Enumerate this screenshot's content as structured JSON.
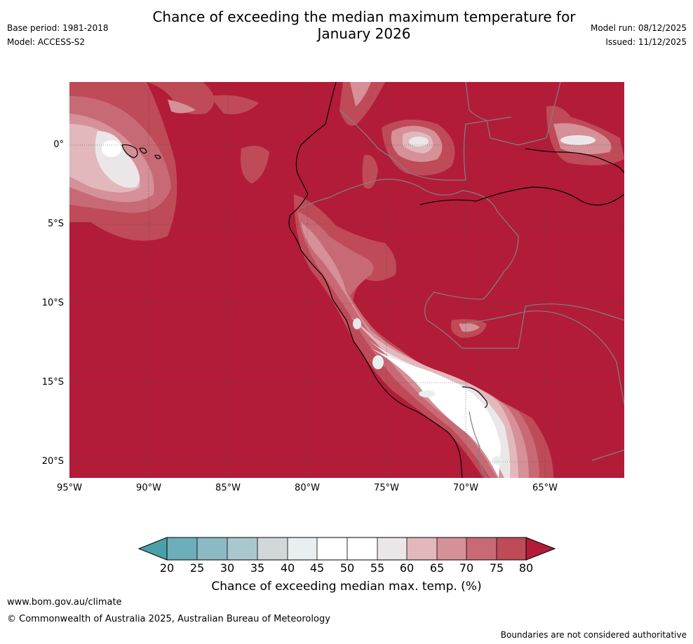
{
  "title_line1": "Chance of exceeding the median maximum temperature for",
  "title_line2": "January 2026",
  "base_period": "Base period: 1981-2018",
  "model": "Model: ACCESS-S2",
  "model_run": "Model run: 08/12/2025",
  "issued": "Issued: 11/12/2025",
  "lat_labels": [
    "0°",
    "5°S",
    "10°S",
    "15°S",
    "20°S"
  ],
  "lon_labels": [
    "95°W",
    "90°W",
    "85°W",
    "80°W",
    "75°W",
    "70°W",
    "65°W"
  ],
  "colorbar": {
    "ticks": [
      "20",
      "25",
      "30",
      "35",
      "40",
      "45",
      "50",
      "55",
      "60",
      "65",
      "70",
      "75",
      "80"
    ],
    "colors": [
      "#4aa0aa",
      "#6caeba",
      "#8cbac4",
      "#a9c8cd",
      "#d0d8da",
      "#e9eef0",
      "#ffffff",
      "#ffffff",
      "#ebe7e8",
      "#e2b8bc",
      "#d69097",
      "#c86a75",
      "#bf4b58",
      "#b21c39"
    ],
    "title": "Chance of exceeding median max. temp. (%)"
  },
  "footer": {
    "url": "www.bom.gov.au/climate",
    "copyright": "© Commonwealth of Australia 2025, Australian Bureau of Meteorology",
    "note": "Boundaries are not considered authoritative"
  }
}
